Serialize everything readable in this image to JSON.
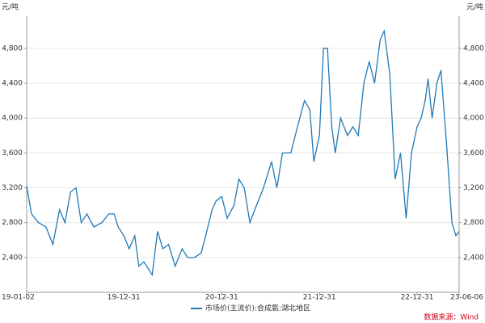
{
  "chart_data": {
    "type": "line",
    "y_label": "元/吨",
    "y2_label": "元/吨",
    "source": "数据来源：Wind",
    "x": [
      "19-01-02",
      "19-01-20",
      "19-02-15",
      "19-03-15",
      "19-04-10",
      "19-05-05",
      "19-05-25",
      "19-06-15",
      "19-07-05",
      "19-07-25",
      "19-08-15",
      "19-09-10",
      "19-10-10",
      "19-11-05",
      "19-11-25",
      "19-12-10",
      "19-12-31",
      "20-01-20",
      "20-02-10",
      "20-02-25",
      "20-03-15",
      "20-04-15",
      "20-05-05",
      "20-05-25",
      "20-06-15",
      "20-07-10",
      "20-08-05",
      "20-08-25",
      "20-09-20",
      "20-10-15",
      "20-11-05",
      "20-11-25",
      "20-12-10",
      "20-12-31",
      "21-01-20",
      "21-02-15",
      "21-03-05",
      "21-03-25",
      "21-04-15",
      "21-05-10",
      "21-06-05",
      "21-07-05",
      "21-07-25",
      "21-08-15",
      "21-09-15",
      "21-10-10",
      "21-11-05",
      "21-11-25",
      "21-12-10",
      "21-12-31",
      "22-01-15",
      "22-01-30",
      "22-02-15",
      "22-02-28",
      "22-03-20",
      "22-04-15",
      "22-05-05",
      "22-05-25",
      "22-06-15",
      "22-07-05",
      "22-07-25",
      "22-08-15",
      "22-08-30",
      "22-09-20",
      "22-10-10",
      "22-10-30",
      "22-11-20",
      "22-12-10",
      "22-12-31",
      "23-01-15",
      "23-01-30",
      "23-02-10",
      "23-02-25",
      "23-03-15",
      "23-03-30",
      "23-04-20",
      "23-05-10",
      "23-05-25",
      "23-06-06"
    ],
    "series": [
      {
        "name": "市场价(主流价):合成氨:湖北地区",
        "color": "#1f7ab8",
        "values": [
          3220,
          2900,
          2800,
          2750,
          2550,
          2950,
          2800,
          3150,
          3200,
          2800,
          2900,
          2750,
          2800,
          2900,
          2900,
          2750,
          2650,
          2500,
          2650,
          2300,
          2350,
          2200,
          2700,
          2500,
          2550,
          2300,
          2500,
          2400,
          2400,
          2450,
          2700,
          2950,
          3050,
          3100,
          2850,
          3000,
          3300,
          3200,
          2800,
          3000,
          3200,
          3500,
          3200,
          3600,
          3600,
          3900,
          4200,
          4100,
          3500,
          3800,
          4800,
          4800,
          3900,
          3600,
          4000,
          3800,
          3900,
          3800,
          4400,
          4650,
          4400,
          4900,
          5000,
          4500,
          3300,
          3600,
          2850,
          3600,
          3900,
          4000,
          4200,
          4450,
          4000,
          4400,
          4550,
          3700,
          2800,
          2650,
          2700
        ]
      }
    ],
    "xlim": [
      "19-01-02",
      "23-06-06"
    ],
    "xticks": [
      "19-01-02",
      "19-12-31",
      "20-12-31",
      "21-12-31",
      "22-12-31",
      "23-06-06"
    ],
    "ylim": [
      2000,
      5170
    ],
    "yticks": [
      {
        "value": 2400,
        "label": "2,400"
      },
      {
        "value": 2800,
        "label": "2,800"
      },
      {
        "value": 3200,
        "label": "3,200"
      },
      {
        "value": 3600,
        "label": "3,600"
      },
      {
        "value": 4000,
        "label": "4,000"
      },
      {
        "value": 4400,
        "label": "4,400"
      },
      {
        "value": 4800,
        "label": "4,800"
      }
    ],
    "y2lim": [
      2000,
      5170
    ],
    "y2ticks": [
      {
        "value": 2400,
        "label": "2,400"
      },
      {
        "value": 2800,
        "label": "2,800"
      },
      {
        "value": 3200,
        "label": "3,200"
      },
      {
        "value": 3600,
        "label": "3,600"
      },
      {
        "value": 4000,
        "label": "4,000"
      },
      {
        "value": 4400,
        "label": "4,400"
      },
      {
        "value": 4800,
        "label": "4,800"
      }
    ],
    "grid": true
  }
}
